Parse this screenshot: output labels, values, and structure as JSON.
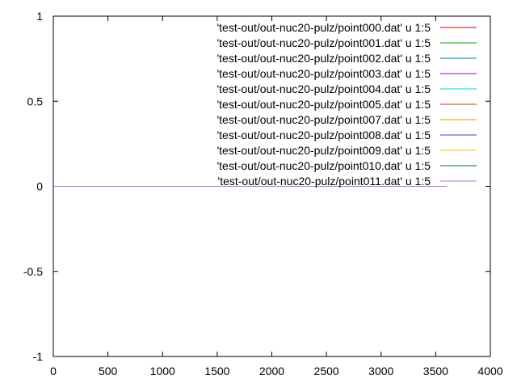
{
  "chart_data": {
    "type": "line",
    "xlim": [
      0,
      4000
    ],
    "ylim": [
      -1,
      1
    ],
    "x_ticks": [
      0,
      500,
      1000,
      1500,
      2000,
      2500,
      3000,
      3500,
      4000
    ],
    "y_ticks": [
      -1,
      -0.5,
      0,
      0.5,
      1
    ],
    "x_tick_labels": [
      "0",
      "500",
      "1000",
      "1500",
      "2000",
      "2500",
      "3000",
      "3500",
      "4000"
    ],
    "y_tick_labels": [
      "-1",
      "-0.5",
      "0",
      "0.5",
      "1"
    ],
    "grid": false,
    "legend_position": "top-right",
    "series": [
      {
        "name": "'test-out/out-nuc20-pulz/point000.dat' u 1:5",
        "color": "#cc0000",
        "x": [
          0,
          3600
        ],
        "y": [
          0,
          0
        ]
      },
      {
        "name": "'test-out/out-nuc20-pulz/point001.dat' u 1:5",
        "color": "#00a000",
        "x": [
          0,
          3600
        ],
        "y": [
          0,
          0
        ]
      },
      {
        "name": "'test-out/out-nuc20-pulz/point002.dat' u 1:5",
        "color": "#0080c0",
        "x": [
          0,
          3600
        ],
        "y": [
          0,
          0
        ]
      },
      {
        "name": "'test-out/out-nuc20-pulz/point003.dat' u 1:5",
        "color": "#a000c0",
        "x": [
          0,
          3600
        ],
        "y": [
          0,
          0
        ]
      },
      {
        "name": "'test-out/out-nuc20-pulz/point004.dat' u 1:5",
        "color": "#00d0e0",
        "x": [
          0,
          3600
        ],
        "y": [
          0,
          0
        ]
      },
      {
        "name": "'test-out/out-nuc20-pulz/point005.dat' u 1:5",
        "color": "#c04000",
        "x": [
          0,
          3600
        ],
        "y": [
          0,
          0
        ]
      },
      {
        "name": "'test-out/out-nuc20-pulz/point007.dat' u 1:5",
        "color": "#d0a000",
        "x": [
          0,
          3600
        ],
        "y": [
          0,
          0
        ]
      },
      {
        "name": "'test-out/out-nuc20-pulz/point008.dat' u 1:5",
        "color": "#4040c0",
        "x": [
          0,
          3600
        ],
        "y": [
          0,
          0
        ]
      },
      {
        "name": "'test-out/out-nuc20-pulz/point009.dat' u 1:5",
        "color": "#f0c000",
        "x": [
          0,
          3600
        ],
        "y": [
          0,
          0
        ]
      },
      {
        "name": "'test-out/out-nuc20-pulz/point010.dat' u 1:5",
        "color": "#007040",
        "x": [
          0,
          3600
        ],
        "y": [
          0,
          0
        ]
      },
      {
        "name": "'test-out/out-nuc20-pulz/point011.dat' u 1:5",
        "color": "#b070e0",
        "x": [
          0,
          3600
        ],
        "y": [
          0,
          0
        ]
      }
    ]
  }
}
